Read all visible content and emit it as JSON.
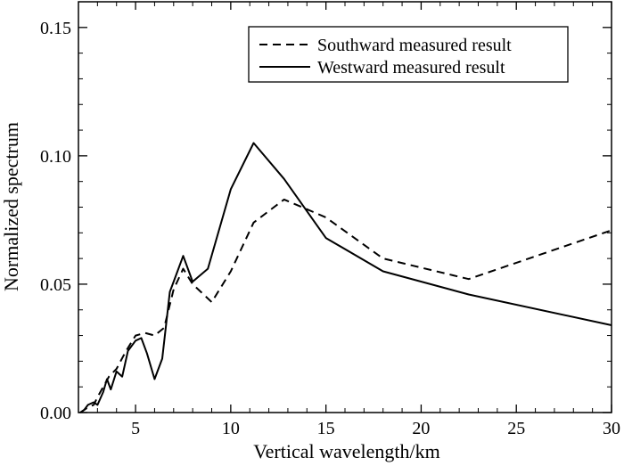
{
  "chart_data": {
    "type": "line",
    "title": "",
    "xlabel": "Vertical wavelength/km",
    "ylabel": "Normalized spectrum",
    "xlim": [
      2,
      30
    ],
    "ylim": [
      0,
      0.16
    ],
    "grid": false,
    "legend_position": "top-right",
    "x_ticks": [
      5,
      10,
      15,
      20,
      25,
      30
    ],
    "x_tick_labels": [
      "5",
      "10",
      "15",
      "20",
      "25",
      "30"
    ],
    "y_ticks": [
      0,
      0.05,
      0.1,
      0.15
    ],
    "y_tick_labels": [
      "0.00",
      "0.05",
      "0.10",
      "0.15"
    ],
    "series": [
      {
        "name": "Southward measured result",
        "style": "dashed",
        "color": "#000000",
        "x": [
          2.1,
          2.3,
          2.5,
          2.8,
          3.0,
          3.3,
          3.6,
          4.0,
          4.5,
          5.0,
          5.5,
          6.0,
          6.5,
          7.0,
          7.5,
          8.0,
          9.0,
          10.0,
          11.2,
          12.8,
          15.0,
          18.0,
          22.5,
          30.0
        ],
        "values": [
          0.0,
          0.001,
          0.002,
          0.003,
          0.006,
          0.01,
          0.014,
          0.017,
          0.024,
          0.03,
          0.031,
          0.03,
          0.033,
          0.048,
          0.056,
          0.05,
          0.043,
          0.055,
          0.074,
          0.083,
          0.076,
          0.06,
          0.052,
          0.071
        ]
      },
      {
        "name": "Westward measured result",
        "style": "solid",
        "color": "#000000",
        "x": [
          2.1,
          2.3,
          2.5,
          2.8,
          3.0,
          3.3,
          3.5,
          3.7,
          4.0,
          4.3,
          4.6,
          5.0,
          5.3,
          5.6,
          6.0,
          6.4,
          6.8,
          7.2,
          7.5,
          8.0,
          8.8,
          10.0,
          11.2,
          12.8,
          15.0,
          18.0,
          22.5,
          30.0
        ],
        "values": [
          0.0,
          0.001,
          0.003,
          0.004,
          0.003,
          0.008,
          0.013,
          0.009,
          0.016,
          0.014,
          0.024,
          0.028,
          0.029,
          0.023,
          0.013,
          0.021,
          0.047,
          0.055,
          0.061,
          0.051,
          0.056,
          0.087,
          0.105,
          0.091,
          0.068,
          0.055,
          0.046,
          0.034
        ]
      }
    ]
  }
}
